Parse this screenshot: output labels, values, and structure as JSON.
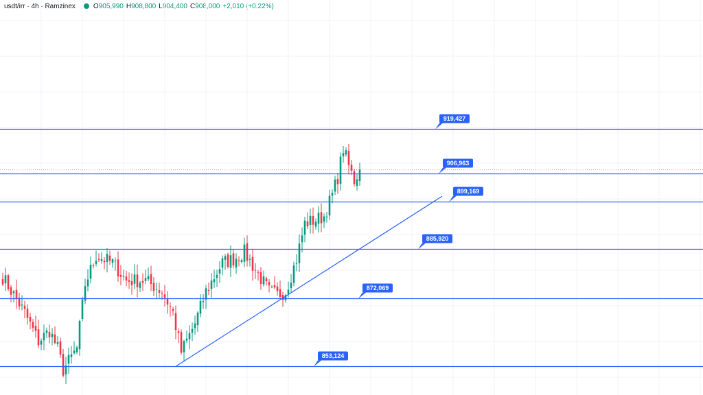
{
  "header": {
    "title": "usdt/irr · 4h · Ramzinex",
    "open_label": "O",
    "open": "905,990",
    "high_label": "H",
    "high": "908,800",
    "low_label": "L",
    "low": "904,400",
    "close_label": "C",
    "close": "908,000",
    "change": "+2,010 (+0.22%)"
  },
  "colors": {
    "up": "#089981",
    "down": "#f23645",
    "line": "#2962ff",
    "grid": "#f0f3fa"
  },
  "chart_data": {
    "type": "candlestick",
    "symbol": "usdt/irr",
    "interval": "4h",
    "exchange": "Ramzinex",
    "ylim": [
      845000,
      930000
    ],
    "levels": [
      {
        "value": 919427,
        "label": "919,427"
      },
      {
        "value": 906963,
        "label": "906,963"
      },
      {
        "value": 899169,
        "label": "899,169"
      },
      {
        "value": 885920,
        "label": "885,920"
      },
      {
        "value": 872069,
        "label": "872,069"
      },
      {
        "value": 853124,
        "label": "853,124"
      }
    ],
    "trendline": {
      "start_index": 63,
      "start_value": 853000,
      "end_index": 160,
      "end_value": 900600
    },
    "close_anchors": [
      [
        0,
        878000
      ],
      [
        8,
        868000
      ],
      [
        13,
        860000
      ],
      [
        17,
        863000
      ],
      [
        20,
        858000
      ],
      [
        22,
        852000
      ],
      [
        27,
        858000
      ],
      [
        30,
        876000
      ],
      [
        34,
        884000
      ],
      [
        40,
        882000
      ],
      [
        45,
        877000
      ],
      [
        52,
        877000
      ],
      [
        58,
        874000
      ],
      [
        62,
        868000
      ],
      [
        65,
        857000
      ],
      [
        70,
        865000
      ],
      [
        74,
        874000
      ],
      [
        80,
        882000
      ],
      [
        84,
        883000
      ],
      [
        88,
        885000
      ],
      [
        92,
        880000
      ],
      [
        97,
        874000
      ],
      [
        100,
        873000
      ],
      [
        103,
        874000
      ],
      [
        107,
        883000
      ],
      [
        110,
        893000
      ],
      [
        114,
        894000
      ],
      [
        117,
        895000
      ],
      [
        120,
        901000
      ],
      [
        122,
        906000
      ],
      [
        124,
        914000
      ],
      [
        126,
        909000
      ],
      [
        128,
        905000
      ],
      [
        130,
        908000
      ]
    ]
  }
}
